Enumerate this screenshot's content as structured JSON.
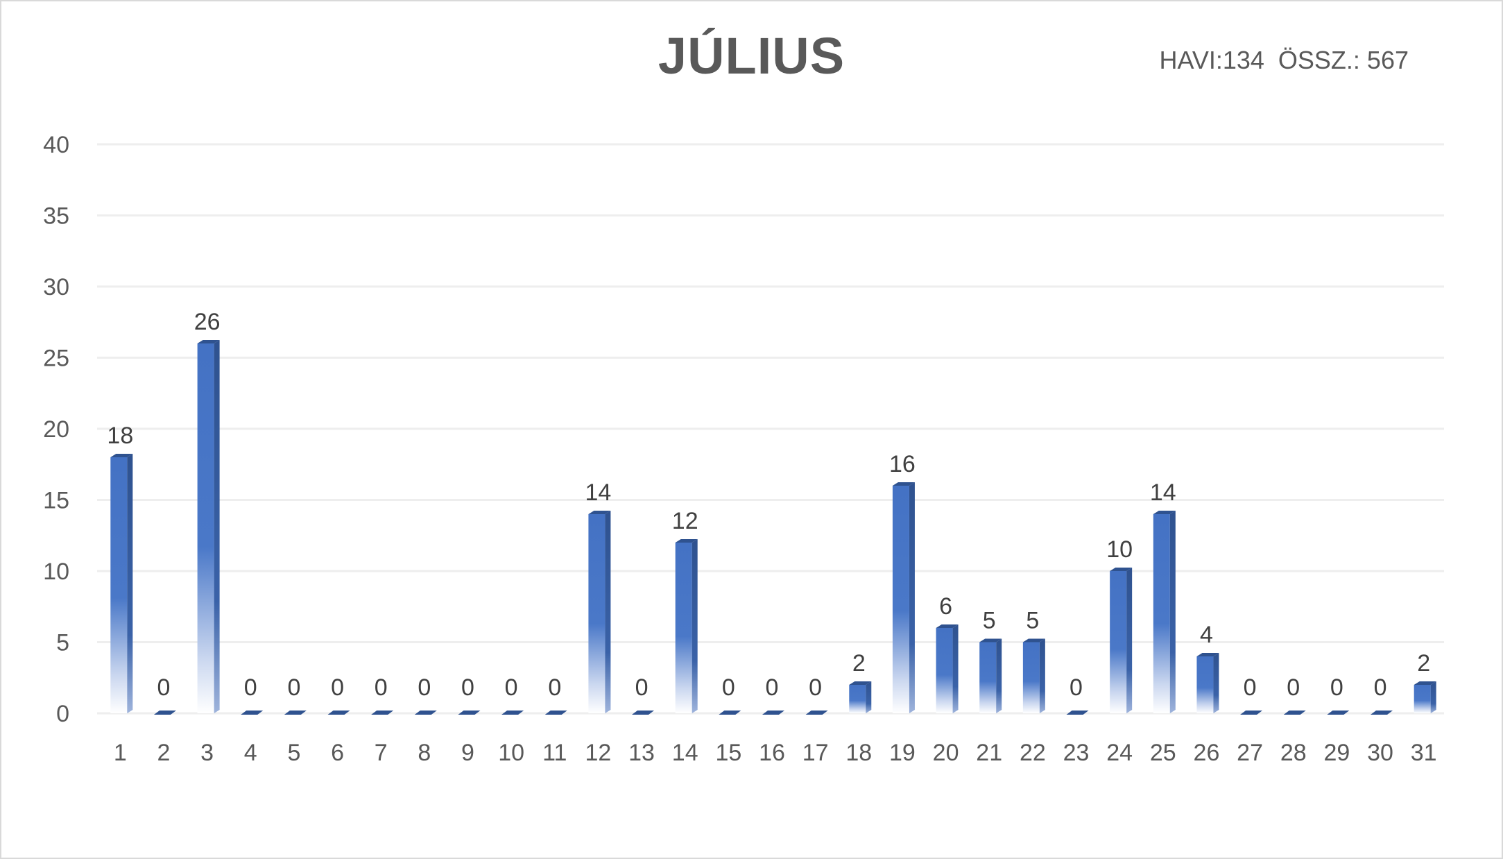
{
  "summary": {
    "text": "HAVI:134  ÖSSZ.: 567"
  },
  "colors": {
    "bar_top": "#4472c4",
    "bar_face": "#4472c4",
    "bar_side": "#2f528f",
    "bar_fade": "#ffffff",
    "grid": "#eeeeee",
    "axis_text": "#595959"
  },
  "chart_data": {
    "type": "bar",
    "title": "JÚLIUS",
    "xlabel": "",
    "ylabel": "",
    "ylim": [
      0,
      40
    ],
    "yticks": [
      0,
      5,
      10,
      15,
      20,
      25,
      30,
      35,
      40
    ],
    "grid": true,
    "legend": "none",
    "categories": [
      "1",
      "2",
      "3",
      "4",
      "5",
      "6",
      "7",
      "8",
      "9",
      "10",
      "11",
      "12",
      "13",
      "14",
      "15",
      "16",
      "17",
      "18",
      "19",
      "20",
      "21",
      "22",
      "23",
      "24",
      "25",
      "26",
      "27",
      "28",
      "29",
      "30",
      "31"
    ],
    "values": [
      18,
      0,
      26,
      0,
      0,
      0,
      0,
      0,
      0,
      0,
      0,
      14,
      0,
      12,
      0,
      0,
      0,
      2,
      16,
      6,
      5,
      5,
      0,
      10,
      14,
      4,
      0,
      0,
      0,
      0,
      2
    ],
    "data_labels": true
  }
}
